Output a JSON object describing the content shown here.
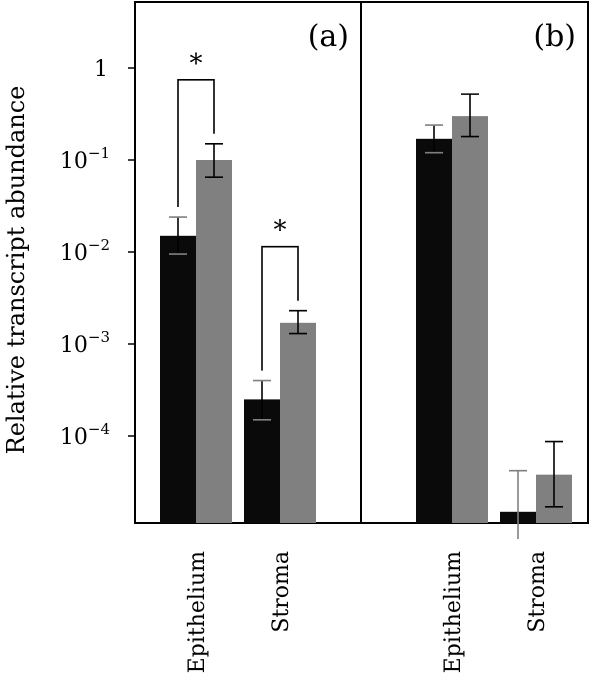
{
  "chart_data": {
    "type": "bar",
    "y_scale": "log",
    "ylabel": "Relative transcript abundance",
    "y_ticks": [
      {
        "value": 1,
        "base": "1",
        "exp": ""
      },
      {
        "value": 0.1,
        "base": "10",
        "exp": "−1"
      },
      {
        "value": 0.01,
        "base": "10",
        "exp": "−2"
      },
      {
        "value": 0.001,
        "base": "10",
        "exp": "−3"
      },
      {
        "value": 0.0001,
        "base": "10",
        "exp": "−4"
      }
    ],
    "colors": [
      "#0a0a0a",
      "#808080"
    ],
    "panels": [
      {
        "label": "(a)",
        "categories": [
          "Epithelium",
          "Stroma"
        ],
        "series": [
          {
            "values": [
              0.015,
              0.00025
            ],
            "err_low": [
              0.0095,
              0.00015
            ],
            "err_high": [
              0.024,
              0.0004
            ]
          },
          {
            "values": [
              0.1,
              0.0017
            ],
            "err_low": [
              0.065,
              0.0013
            ],
            "err_high": [
              0.15,
              0.0023
            ]
          }
        ],
        "significance": [
          {
            "category": 0,
            "label": "*"
          },
          {
            "category": 1,
            "label": "*"
          }
        ]
      },
      {
        "label": "(b)",
        "categories": [
          "Epithelium",
          "Stroma"
        ],
        "series": [
          {
            "values": [
              0.17,
              1.5e-05
            ],
            "err_low": [
              0.12,
              7e-06
            ],
            "err_high": [
              0.24,
              4.2e-05
            ]
          },
          {
            "values": [
              0.3,
              3.8e-05
            ],
            "err_low": [
              0.18,
              1.7e-05
            ],
            "err_high": [
              0.52,
              8.7e-05
            ]
          }
        ],
        "significance": []
      }
    ]
  }
}
